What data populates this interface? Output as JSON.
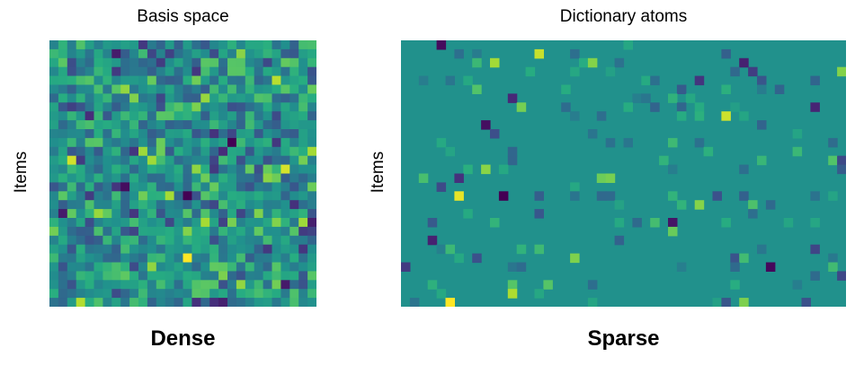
{
  "left_panel": {
    "title": "Basis space",
    "ylabel": "Items",
    "caption": "Dense"
  },
  "right_panel": {
    "title": "Dictionary atoms",
    "ylabel": "Items",
    "caption": "Sparse"
  },
  "chart_data": [
    {
      "type": "heatmap",
      "title": "Basis space",
      "ylabel": "Items",
      "rows": 30,
      "cols": 30,
      "colormap": "viridis",
      "distribution": "dense"
    },
    {
      "type": "heatmap",
      "title": "Dictionary atoms",
      "ylabel": "Items",
      "rows": 30,
      "cols": 50,
      "colormap": "viridis",
      "distribution": "sparse",
      "background_color": "#21918c"
    }
  ]
}
